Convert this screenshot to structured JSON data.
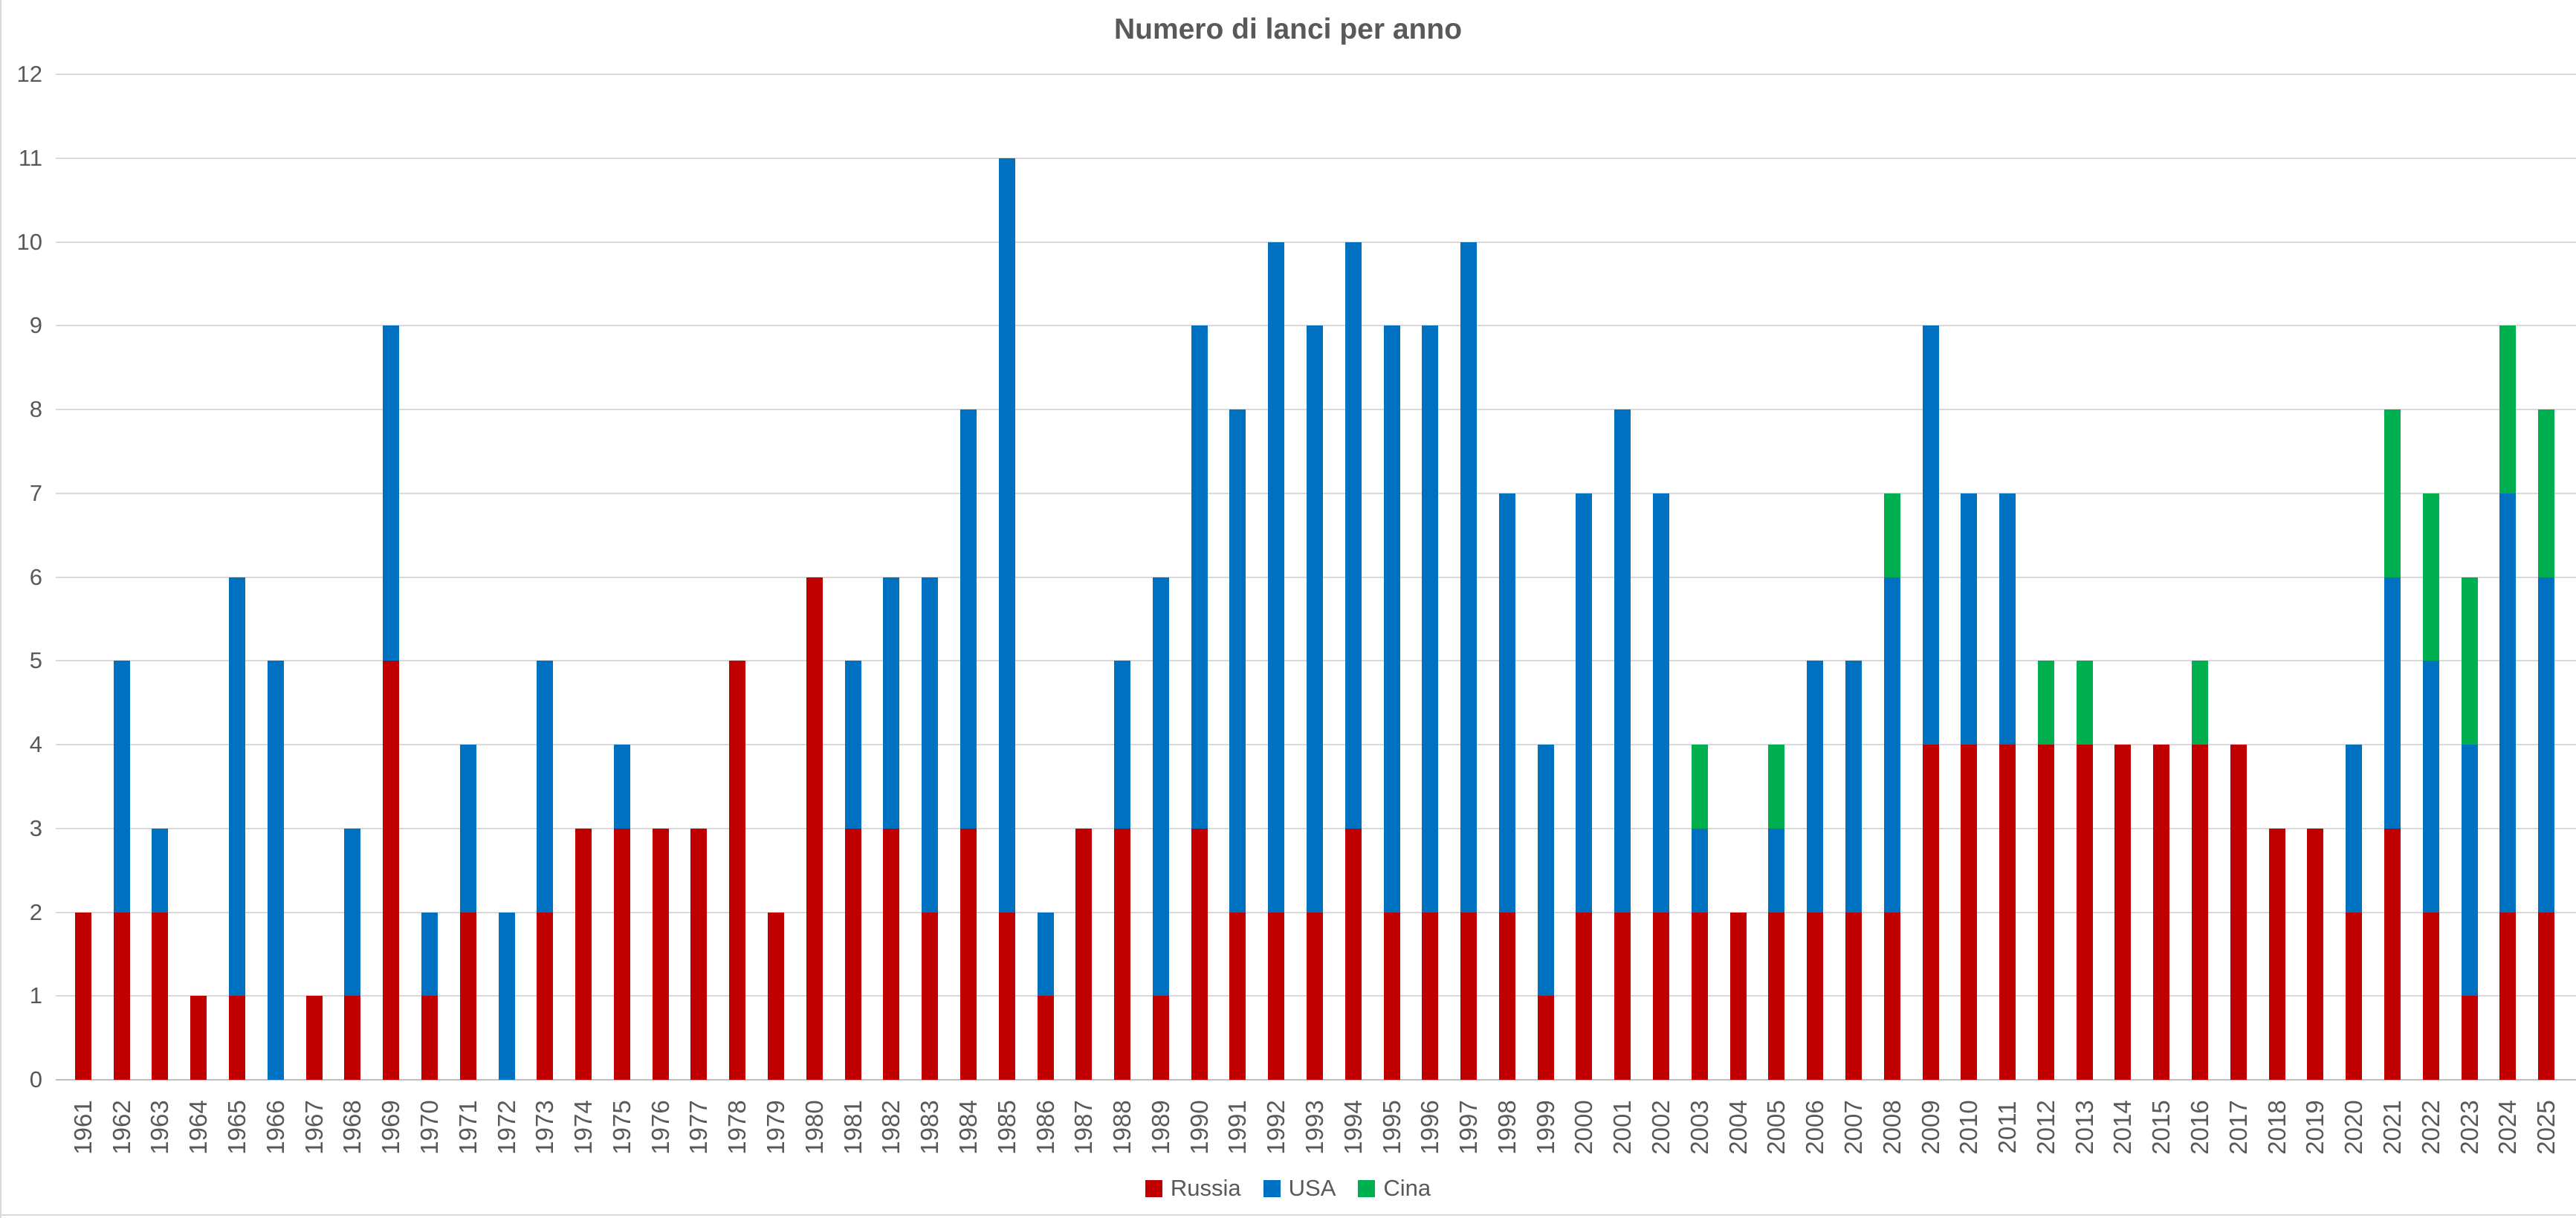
{
  "chart_data": {
    "type": "bar",
    "stacked": true,
    "title": "Numero di lanci per anno",
    "xlabel": "",
    "ylabel": "",
    "ylim": [
      0,
      12
    ],
    "y_ticks": [
      0,
      1,
      2,
      3,
      4,
      5,
      6,
      7,
      8,
      9,
      10,
      11,
      12
    ],
    "grid": "horizontal-on",
    "legend_position": "bottom-center",
    "gridline_color": "#D9D9D9",
    "axis_text_color": "#595959",
    "categories": [
      "1961",
      "1962",
      "1963",
      "1964",
      "1965",
      "1966",
      "1967",
      "1968",
      "1969",
      "1970",
      "1971",
      "1972",
      "1973",
      "1974",
      "1975",
      "1976",
      "1977",
      "1978",
      "1979",
      "1980",
      "1981",
      "1982",
      "1983",
      "1984",
      "1985",
      "1986",
      "1987",
      "1988",
      "1989",
      "1990",
      "1991",
      "1992",
      "1993",
      "1994",
      "1995",
      "1996",
      "1997",
      "1998",
      "1999",
      "2000",
      "2001",
      "2002",
      "2003",
      "2004",
      "2005",
      "2006",
      "2007",
      "2008",
      "2009",
      "2010",
      "2011",
      "2012",
      "2013",
      "2014",
      "2015",
      "2016",
      "2017",
      "2018",
      "2019",
      "2020",
      "2021",
      "2022",
      "2023",
      "2024",
      "2025"
    ],
    "series": [
      {
        "name": "Russia",
        "color": "#C00000",
        "values": [
          2,
          2,
          2,
          1,
          1,
          0,
          1,
          1,
          5,
          1,
          2,
          0,
          2,
          3,
          3,
          3,
          3,
          5,
          2,
          6,
          3,
          3,
          2,
          3,
          2,
          1,
          3,
          3,
          1,
          3,
          2,
          2,
          2,
          3,
          2,
          2,
          2,
          2,
          1,
          2,
          2,
          2,
          2,
          2,
          2,
          2,
          2,
          2,
          4,
          4,
          4,
          4,
          4,
          4,
          4,
          4,
          4,
          3,
          3,
          2,
          3,
          2,
          1,
          2,
          2
        ]
      },
      {
        "name": "USA",
        "color": "#0070C0",
        "values": [
          0,
          3,
          1,
          0,
          5,
          5,
          0,
          2,
          4,
          1,
          2,
          2,
          3,
          0,
          1,
          0,
          0,
          0,
          0,
          0,
          2,
          3,
          4,
          5,
          9,
          1,
          0,
          2,
          5,
          6,
          6,
          8,
          7,
          7,
          7,
          7,
          8,
          5,
          3,
          5,
          6,
          5,
          1,
          0,
          1,
          3,
          3,
          4,
          5,
          3,
          3,
          0,
          0,
          0,
          0,
          0,
          0,
          0,
          0,
          2,
          3,
          3,
          3,
          5,
          4
        ]
      },
      {
        "name": "Cina",
        "color": "#00B050",
        "values": [
          0,
          0,
          0,
          0,
          0,
          0,
          0,
          0,
          0,
          0,
          0,
          0,
          0,
          0,
          0,
          0,
          0,
          0,
          0,
          0,
          0,
          0,
          0,
          0,
          0,
          0,
          0,
          0,
          0,
          0,
          0,
          0,
          0,
          0,
          0,
          0,
          0,
          0,
          0,
          0,
          0,
          0,
          1,
          0,
          1,
          0,
          0,
          1,
          0,
          0,
          0,
          1,
          1,
          0,
          0,
          1,
          0,
          0,
          0,
          0,
          2,
          2,
          2,
          2,
          2
        ]
      }
    ]
  }
}
